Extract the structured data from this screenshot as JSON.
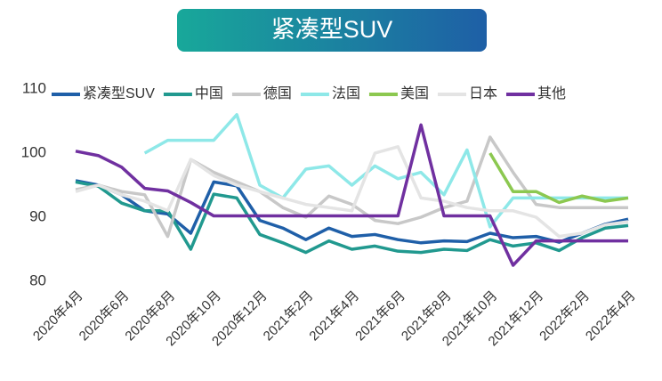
{
  "chart_data": {
    "type": "line",
    "title": "紧凑型SUV",
    "categories": [
      "2020年4月",
      null,
      "2020年6月",
      null,
      "2020年8月",
      null,
      "2020年10月",
      null,
      "2020年12月",
      null,
      "2021年2月",
      null,
      "2021年4月",
      null,
      "2021年6月",
      null,
      "2021年8月",
      null,
      "2021年10月",
      null,
      "2021年12月",
      null,
      "2022年2月",
      null,
      "2022年4月"
    ],
    "ylim": [
      80,
      110
    ],
    "yticks": [
      80,
      90,
      100,
      110
    ],
    "grid": false,
    "series": [
      {
        "name": "紧凑型SUV",
        "color": "#1f5fa8",
        "values": [
          95.7,
          95,
          93.5,
          91,
          90.5,
          87.5,
          95.5,
          94.9,
          89.5,
          88.3,
          86.5,
          88.3,
          87,
          87.3,
          86.5,
          86,
          86.3,
          86.2,
          87.5,
          86.8,
          87,
          86.1,
          87.5,
          88.9,
          89.7
        ]
      },
      {
        "name": "中国",
        "color": "#21998f",
        "values": [
          95.5,
          94.8,
          92.2,
          91,
          91,
          85,
          93.6,
          93,
          87.3,
          86,
          84.5,
          86.3,
          85,
          85.5,
          84.7,
          84.5,
          85,
          84.8,
          86.5,
          85.5,
          86,
          84.8,
          86.8,
          88.3,
          88.7
        ]
      },
      {
        "name": "德国",
        "color": "#c8c8c8",
        "values": [
          94.3,
          95,
          94,
          93.5,
          87,
          99,
          97,
          95.5,
          94,
          91.5,
          90,
          93.3,
          92,
          89.5,
          89,
          90,
          91.5,
          92.5,
          102.5,
          97,
          92,
          91.5,
          91.5,
          91.5,
          91.5
        ]
      },
      {
        "name": "法国",
        "color": "#8ee8e8",
        "values": [
          null,
          null,
          null,
          100,
          102,
          102,
          102,
          106,
          95,
          93,
          97.5,
          98,
          95,
          98,
          96,
          97,
          93.5,
          100.5,
          88.5,
          93,
          93,
          93,
          93,
          93,
          93
        ]
      },
      {
        "name": "美国",
        "color": "#8cc850",
        "values": [
          null,
          null,
          null,
          null,
          null,
          null,
          null,
          null,
          null,
          null,
          null,
          null,
          null,
          null,
          null,
          null,
          null,
          null,
          100,
          94,
          94,
          92.3,
          93.3,
          92.5,
          93
        ]
      },
      {
        "name": "日本",
        "color": "#e4e4e4",
        "values": [
          94,
          95,
          93.5,
          92.5,
          91,
          99,
          96.5,
          95,
          94,
          93,
          92,
          91.5,
          91,
          100,
          101,
          93,
          92.5,
          91.5,
          91,
          91,
          90,
          87,
          87.5,
          88.8,
          89.3
        ]
      },
      {
        "name": "其他",
        "color": "#7030a0",
        "values": [
          100.3,
          99.6,
          97.8,
          94.5,
          94.1,
          92.3,
          90.2,
          90.2,
          90.2,
          90.2,
          90.2,
          90.2,
          90.2,
          90.2,
          90.2,
          104.4,
          90.2,
          90.2,
          90.2,
          82.5,
          86.3,
          86.3,
          86.3,
          86.3,
          86.3
        ]
      }
    ]
  }
}
